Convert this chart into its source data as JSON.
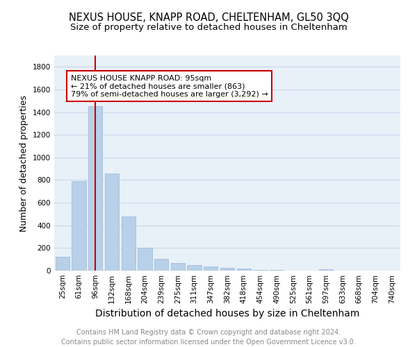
{
  "title": "NEXUS HOUSE, KNAPP ROAD, CHELTENHAM, GL50 3QQ",
  "subtitle": "Size of property relative to detached houses in Cheltenham",
  "xlabel": "Distribution of detached houses by size in Cheltenham",
  "ylabel": "Number of detached properties",
  "categories": [
    "25sqm",
    "61sqm",
    "96sqm",
    "132sqm",
    "168sqm",
    "204sqm",
    "239sqm",
    "275sqm",
    "311sqm",
    "347sqm",
    "382sqm",
    "418sqm",
    "454sqm",
    "490sqm",
    "525sqm",
    "561sqm",
    "597sqm",
    "633sqm",
    "668sqm",
    "704sqm",
    "740sqm"
  ],
  "values": [
    120,
    790,
    1455,
    860,
    480,
    200,
    105,
    70,
    50,
    35,
    25,
    20,
    5,
    4,
    3,
    3,
    15,
    0,
    0,
    0,
    0
  ],
  "bar_color": "#b8d0e8",
  "bar_edge_color": "#9ab8d8",
  "vline_x_index": 2,
  "vline_color": "#cc0000",
  "annotation_text": "NEXUS HOUSE KNAPP ROAD: 95sqm\n← 21% of detached houses are smaller (863)\n79% of semi-detached houses are larger (3,292) →",
  "annotation_box_color": "#cc0000",
  "annotation_bg_color": "#ffffff",
  "ylim": [
    0,
    1900
  ],
  "yticks": [
    0,
    200,
    400,
    600,
    800,
    1000,
    1200,
    1400,
    1600,
    1800
  ],
  "grid_color": "#c8d8e8",
  "bg_color": "#e8f0f8",
  "footer_line1": "Contains HM Land Registry data © Crown copyright and database right 2024.",
  "footer_line2": "Contains public sector information licensed under the Open Government Licence v3.0.",
  "title_fontsize": 10.5,
  "subtitle_fontsize": 9.5,
  "xlabel_fontsize": 10,
  "ylabel_fontsize": 9,
  "tick_fontsize": 7.5,
  "annotation_fontsize": 8,
  "footer_fontsize": 7
}
